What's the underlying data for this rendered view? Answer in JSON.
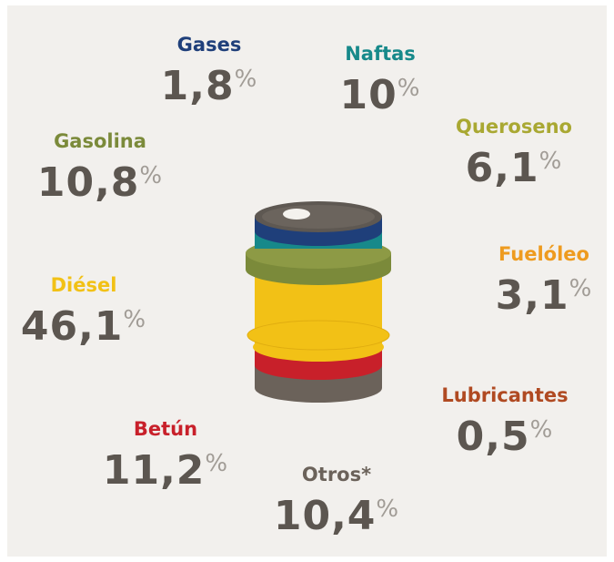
{
  "unit": "%",
  "items": [
    {
      "label": "Gases",
      "value": "1,8",
      "color": "#1f3f7a"
    },
    {
      "label": "Naftas",
      "value": "10",
      "color": "#17898a"
    },
    {
      "label": "Gasolina",
      "value": "10,8",
      "color": "#7b8a3a"
    },
    {
      "label": "Queroseno",
      "value": "6,1",
      "color": "#a9a832"
    },
    {
      "label": "Fuelóleo",
      "value": "3,1",
      "color": "#ee9b1f"
    },
    {
      "label": "Diésel",
      "value": "46,1",
      "color": "#f2c116"
    },
    {
      "label": "Lubricantes",
      "value": "0,5",
      "color": "#b04a22"
    },
    {
      "label": "Betún",
      "value": "11,2",
      "color": "#c8202a"
    },
    {
      "label": "Otros*",
      "value": "10,4",
      "color": "#6b625a"
    }
  ]
}
